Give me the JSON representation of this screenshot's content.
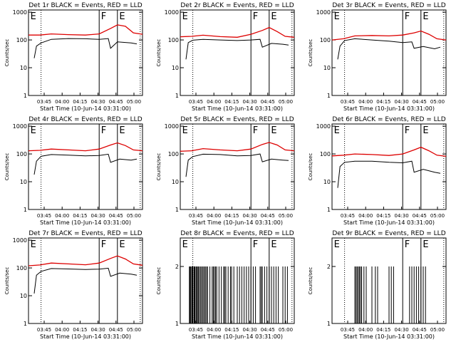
{
  "chart_data": [
    {
      "type": "line",
      "panel_id": "det1",
      "title": "Det 1r BLACK = Events, RED = LLD",
      "xlabel": "Start Time (10-Jun-14 03:31:00)",
      "ylabel": "Counts/sec",
      "y_scale": "log",
      "ylim": [
        1,
        1200
      ],
      "y_tick_labels": [
        "1",
        "10",
        "100",
        "1000"
      ],
      "x_tick_labels": [
        "03:45",
        "04:00",
        "04:15",
        "04:30",
        "04:45",
        "05:00"
      ],
      "markers": [
        "E",
        "F",
        "E"
      ],
      "series": [
        {
          "color": "#000000",
          "points": [
            [
              0.05,
              22
            ],
            [
              0.07,
              60
            ],
            [
              0.11,
              78
            ],
            [
              0.2,
              105
            ],
            [
              0.35,
              112
            ],
            [
              0.5,
              110
            ],
            [
              0.62,
              105
            ],
            [
              0.7,
              112
            ],
            [
              0.72,
              50
            ],
            [
              0.78,
              85
            ],
            [
              0.9,
              78
            ],
            [
              0.95,
              72
            ]
          ]
        },
        {
          "color": "#dd0000",
          "points": [
            [
              0,
              150
            ],
            [
              0.1,
              150
            ],
            [
              0.2,
              165
            ],
            [
              0.35,
              155
            ],
            [
              0.5,
              150
            ],
            [
              0.62,
              165
            ],
            [
              0.72,
              260
            ],
            [
              0.78,
              350
            ],
            [
              0.85,
              310
            ],
            [
              0.92,
              180
            ],
            [
              1,
              160
            ]
          ]
        }
      ]
    },
    {
      "type": "line",
      "panel_id": "det2",
      "title": "Det 2r BLACK = Events, RED = LLD",
      "xlabel": "Start Time (10-Jun-14 03:31:00)",
      "ylabel": "Counts/sec",
      "y_scale": "log",
      "ylim": [
        1,
        1200
      ],
      "y_tick_labels": [
        "1",
        "10",
        "100",
        "1000"
      ],
      "x_tick_labels": [
        "03:45",
        "04:00",
        "04:15",
        "04:30",
        "04:45",
        "05:00"
      ],
      "markers": [
        "E",
        "F",
        "E"
      ],
      "series": [
        {
          "color": "#000000",
          "points": [
            [
              0.05,
              20
            ],
            [
              0.07,
              80
            ],
            [
              0.11,
              98
            ],
            [
              0.2,
              105
            ],
            [
              0.35,
              100
            ],
            [
              0.5,
              95
            ],
            [
              0.62,
              100
            ],
            [
              0.7,
              105
            ],
            [
              0.72,
              55
            ],
            [
              0.8,
              75
            ],
            [
              0.9,
              70
            ],
            [
              0.95,
              65
            ]
          ]
        },
        {
          "color": "#dd0000",
          "points": [
            [
              0,
              130
            ],
            [
              0.1,
              135
            ],
            [
              0.2,
              148
            ],
            [
              0.35,
              132
            ],
            [
              0.5,
              125
            ],
            [
              0.62,
              160
            ],
            [
              0.72,
              220
            ],
            [
              0.78,
              280
            ],
            [
              0.85,
              200
            ],
            [
              0.92,
              135
            ],
            [
              1,
              125
            ]
          ]
        }
      ]
    },
    {
      "type": "line",
      "panel_id": "det3",
      "title": "Det 3r BLACK = Events, RED = LLD",
      "xlabel": "Start Time (10-Jun-14 03:31:00)",
      "ylabel": "Counts/sec",
      "y_scale": "log",
      "ylim": [
        1,
        1200
      ],
      "y_tick_labels": [
        "1",
        "10",
        "100",
        "1000"
      ],
      "x_tick_labels": [
        "03:45",
        "04:00",
        "04:15",
        "04:30",
        "04:45",
        "05:00"
      ],
      "markers": [
        "E",
        "F",
        "E"
      ],
      "series": [
        {
          "color": "#000000",
          "points": [
            [
              0.05,
              20
            ],
            [
              0.07,
              60
            ],
            [
              0.11,
              95
            ],
            [
              0.2,
              110
            ],
            [
              0.35,
              100
            ],
            [
              0.5,
              90
            ],
            [
              0.62,
              80
            ],
            [
              0.7,
              85
            ],
            [
              0.72,
              50
            ],
            [
              0.8,
              58
            ],
            [
              0.9,
              48
            ],
            [
              0.95,
              55
            ]
          ]
        },
        {
          "color": "#dd0000",
          "points": [
            [
              0,
              100
            ],
            [
              0.1,
              110
            ],
            [
              0.2,
              140
            ],
            [
              0.35,
              145
            ],
            [
              0.5,
              140
            ],
            [
              0.62,
              150
            ],
            [
              0.72,
              180
            ],
            [
              0.78,
              210
            ],
            [
              0.85,
              160
            ],
            [
              0.92,
              110
            ],
            [
              1,
              100
            ]
          ]
        }
      ]
    },
    {
      "type": "line",
      "panel_id": "det4",
      "title": "Det 4r BLACK = Events, RED = LLD",
      "xlabel": "Start Time (10-Jun-14 03:31:00)",
      "ylabel": "Counts/sec",
      "y_scale": "log",
      "ylim": [
        1,
        1200
      ],
      "y_tick_labels": [
        "1",
        "10",
        "100",
        "1000"
      ],
      "x_tick_labels": [
        "03:45",
        "04:00",
        "04:15",
        "04:30",
        "04:45",
        "05:00"
      ],
      "markers": [
        "E",
        "F",
        "E"
      ],
      "series": [
        {
          "color": "#000000",
          "points": [
            [
              0.05,
              18
            ],
            [
              0.07,
              55
            ],
            [
              0.11,
              82
            ],
            [
              0.2,
              95
            ],
            [
              0.35,
              90
            ],
            [
              0.5,
              85
            ],
            [
              0.62,
              88
            ],
            [
              0.7,
              98
            ],
            [
              0.72,
              50
            ],
            [
              0.8,
              65
            ],
            [
              0.9,
              60
            ],
            [
              0.95,
              65
            ]
          ]
        },
        {
          "color": "#dd0000",
          "points": [
            [
              0,
              130
            ],
            [
              0.1,
              135
            ],
            [
              0.2,
              150
            ],
            [
              0.35,
              140
            ],
            [
              0.5,
              130
            ],
            [
              0.62,
              150
            ],
            [
              0.72,
              210
            ],
            [
              0.78,
              250
            ],
            [
              0.85,
              200
            ],
            [
              0.92,
              140
            ],
            [
              1,
              130
            ]
          ]
        }
      ]
    },
    {
      "type": "line",
      "panel_id": "det5",
      "title": "Det 5r BLACK = Events, RED = LLD",
      "xlabel": "Start Time (10-Jun-14 03:31:00)",
      "ylabel": "Counts/sec",
      "y_scale": "log",
      "ylim": [
        1,
        1200
      ],
      "y_tick_labels": [
        "1",
        "10",
        "100",
        "1000"
      ],
      "x_tick_labels": [
        "03:45",
        "04:00",
        "04:15",
        "04:30",
        "04:45",
        "05:00"
      ],
      "markers": [
        "E",
        "F",
        "E"
      ],
      "series": [
        {
          "color": "#000000",
          "points": [
            [
              0.05,
              15
            ],
            [
              0.07,
              60
            ],
            [
              0.11,
              80
            ],
            [
              0.2,
              98
            ],
            [
              0.35,
              95
            ],
            [
              0.5,
              85
            ],
            [
              0.62,
              88
            ],
            [
              0.7,
              100
            ],
            [
              0.72,
              52
            ],
            [
              0.8,
              65
            ],
            [
              0.9,
              60
            ],
            [
              0.95,
              58
            ]
          ]
        },
        {
          "color": "#dd0000",
          "points": [
            [
              0,
              125
            ],
            [
              0.1,
              130
            ],
            [
              0.2,
              155
            ],
            [
              0.35,
              140
            ],
            [
              0.5,
              130
            ],
            [
              0.62,
              150
            ],
            [
              0.72,
              220
            ],
            [
              0.78,
              260
            ],
            [
              0.85,
              210
            ],
            [
              0.92,
              140
            ],
            [
              1,
              130
            ]
          ]
        }
      ]
    },
    {
      "type": "line",
      "panel_id": "det6",
      "title": "Det 6r BLACK = Events, RED = LLD",
      "xlabel": "Start Time (10-Jun-14 03:31:00)",
      "ylabel": "Counts/sec",
      "y_scale": "log",
      "ylim": [
        1,
        1200
      ],
      "y_tick_labels": [
        "1",
        "10",
        "100",
        "1000"
      ],
      "x_tick_labels": [
        "03:45",
        "04:00",
        "04:15",
        "04:30",
        "04:45",
        "05:00"
      ],
      "markers": [
        "E",
        "F",
        "E"
      ],
      "series": [
        {
          "color": "#000000",
          "points": [
            [
              0.05,
              6
            ],
            [
              0.07,
              35
            ],
            [
              0.11,
              50
            ],
            [
              0.2,
              55
            ],
            [
              0.35,
              55
            ],
            [
              0.5,
              50
            ],
            [
              0.62,
              48
            ],
            [
              0.7,
              55
            ],
            [
              0.72,
              22
            ],
            [
              0.8,
              28
            ],
            [
              0.9,
              22
            ],
            [
              0.95,
              20
            ]
          ]
        },
        {
          "color": "#dd0000",
          "points": [
            [
              0,
              85
            ],
            [
              0.1,
              90
            ],
            [
              0.2,
              100
            ],
            [
              0.35,
              95
            ],
            [
              0.5,
              88
            ],
            [
              0.62,
              100
            ],
            [
              0.72,
              140
            ],
            [
              0.78,
              175
            ],
            [
              0.85,
              130
            ],
            [
              0.92,
              90
            ],
            [
              1,
              82
            ]
          ]
        }
      ]
    },
    {
      "type": "line",
      "panel_id": "det7",
      "title": "Det 7r BLACK = Events, RED = LLD",
      "xlabel": "Start Time (10-Jun-14 03:31:00)",
      "ylabel": "Counts/sec",
      "y_scale": "log",
      "ylim": [
        1,
        1200
      ],
      "y_tick_labels": [
        "1",
        "10",
        "100",
        "1000"
      ],
      "x_tick_labels": [
        "03:45",
        "04:00",
        "04:15",
        "04:30",
        "04:45",
        "05:00"
      ],
      "markers": [
        "E",
        "F",
        "E"
      ],
      "series": [
        {
          "color": "#000000",
          "points": [
            [
              0.05,
              12
            ],
            [
              0.07,
              55
            ],
            [
              0.11,
              75
            ],
            [
              0.2,
              95
            ],
            [
              0.35,
              92
            ],
            [
              0.5,
              88
            ],
            [
              0.62,
              90
            ],
            [
              0.7,
              98
            ],
            [
              0.72,
              50
            ],
            [
              0.8,
              65
            ],
            [
              0.9,
              60
            ],
            [
              0.95,
              55
            ]
          ]
        },
        {
          "color": "#dd0000",
          "points": [
            [
              0,
              120
            ],
            [
              0.1,
              128
            ],
            [
              0.2,
              150
            ],
            [
              0.35,
              140
            ],
            [
              0.5,
              130
            ],
            [
              0.62,
              150
            ],
            [
              0.72,
              220
            ],
            [
              0.78,
              270
            ],
            [
              0.85,
              210
            ],
            [
              0.92,
              140
            ],
            [
              1,
              125
            ]
          ]
        }
      ]
    },
    {
      "type": "line",
      "panel_id": "det8",
      "title": "Det 8r BLACK = Events, RED = LLD",
      "xlabel": "Start Time (10-Jun-14 03:31:00)",
      "ylabel": "Counts/sec",
      "y_scale": "linear",
      "ylim": [
        1,
        2.5
      ],
      "y_tick_labels": [
        "1",
        "2"
      ],
      "x_tick_labels": [
        "03:45",
        "04:00",
        "04:15",
        "04:30",
        "04:45",
        "05:00"
      ],
      "markers": [
        "E",
        "F",
        "E"
      ],
      "series": [
        {
          "color": "#000000",
          "spikes": [
            0.08,
            0.085,
            0.09,
            0.1,
            0.105,
            0.11,
            0.12,
            0.125,
            0.13,
            0.14,
            0.145,
            0.155,
            0.16,
            0.17,
            0.18,
            0.19,
            0.2,
            0.21,
            0.22,
            0.23,
            0.24,
            0.26,
            0.28,
            0.29,
            0.3,
            0.31,
            0.32,
            0.34,
            0.36,
            0.38,
            0.39,
            0.4,
            0.42,
            0.44,
            0.45,
            0.47,
            0.5,
            0.52,
            0.54,
            0.56,
            0.58,
            0.6,
            0.62,
            0.64,
            0.66,
            0.7,
            0.71,
            0.72,
            0.74,
            0.76,
            0.78,
            0.8,
            0.82,
            0.84,
            0.86,
            0.9,
            0.92,
            0.94
          ]
        }
      ]
    },
    {
      "type": "line",
      "panel_id": "det9",
      "title": "Det 9r BLACK = Events, RED = LLD",
      "xlabel": "Start Time (10-Jun-14 03:31:00)",
      "ylabel": "Counts/sec",
      "y_scale": "linear",
      "ylim": [
        1,
        2.5
      ],
      "y_tick_labels": [
        "1",
        "2"
      ],
      "x_tick_labels": [
        "03:45",
        "04:00",
        "04:15",
        "04:30",
        "04:45",
        "05:00"
      ],
      "markers": [
        "E",
        "F",
        "E"
      ],
      "series": [
        {
          "color": "#000000",
          "spikes": [
            0.2,
            0.21,
            0.22,
            0.23,
            0.24,
            0.25,
            0.26,
            0.28,
            0.3,
            0.35,
            0.38,
            0.4,
            0.5,
            0.52,
            0.54,
            0.68,
            0.7,
            0.72,
            0.74,
            0.76,
            0.78,
            0.8,
            0.82
          ]
        }
      ]
    }
  ]
}
